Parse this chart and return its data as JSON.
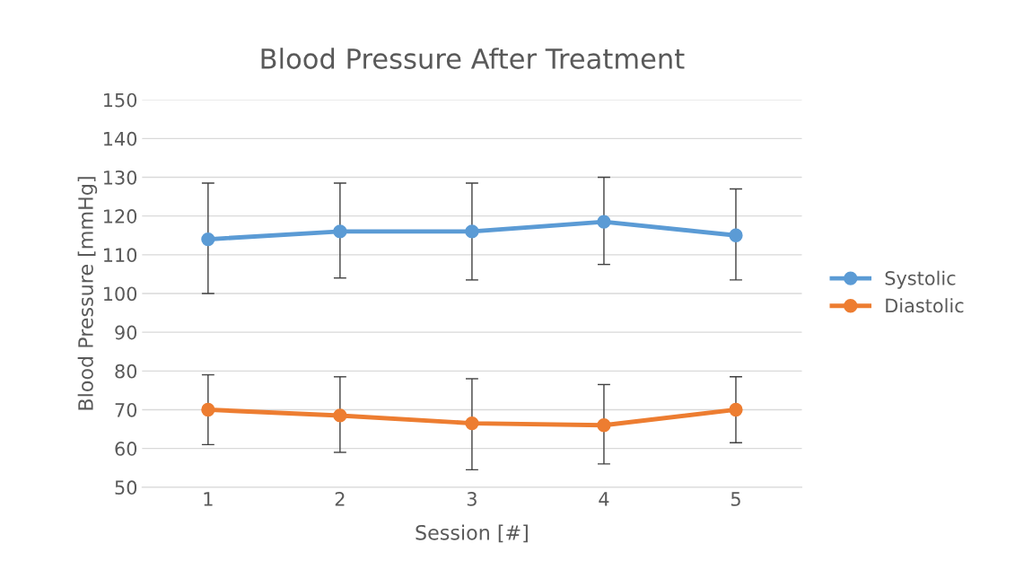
{
  "chart_data": {
    "type": "line",
    "title": "Blood Pressure After Treatment",
    "xlabel": "Session [#]",
    "ylabel": "Blood Pressure [mmHg]",
    "categories": [
      "1",
      "2",
      "3",
      "4",
      "5"
    ],
    "series": [
      {
        "name": "Systolic",
        "color": "#5b9bd5",
        "values": [
          114,
          116,
          116,
          118.5,
          115
        ],
        "errors": [
          [
            100,
            128.5
          ],
          [
            104,
            128.5
          ],
          [
            103.5,
            128.5
          ],
          [
            107.5,
            130
          ],
          [
            103.5,
            127
          ]
        ]
      },
      {
        "name": "Diastolic",
        "color": "#ed7d31",
        "values": [
          70,
          68.5,
          66.5,
          66,
          70
        ],
        "errors": [
          [
            61,
            79
          ],
          [
            59,
            78.5
          ],
          [
            54.5,
            78
          ],
          [
            56,
            76.5
          ],
          [
            61.5,
            78.5
          ]
        ]
      }
    ],
    "ylim": [
      50,
      150
    ],
    "yticks": [
      50,
      60,
      70,
      80,
      90,
      100,
      110,
      120,
      130,
      140,
      150
    ],
    "grid": "y",
    "legend": "right",
    "marker": "circle",
    "line_style": "solid"
  }
}
